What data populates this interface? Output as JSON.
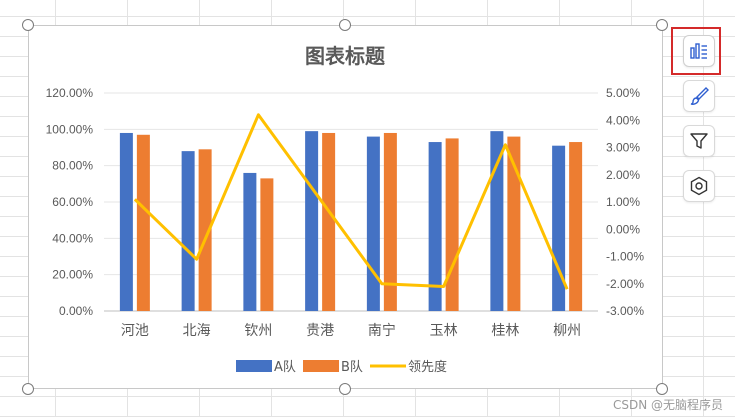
{
  "watermark": "CSDN @无脑程序员",
  "toolbar": {
    "buttons": [
      {
        "icon": "chart-elements-icon",
        "active": true
      },
      {
        "icon": "paintbrush-icon",
        "active": false
      },
      {
        "icon": "filter-icon",
        "active": false
      },
      {
        "icon": "settings-hexagon-icon",
        "active": false
      }
    ]
  },
  "chart_data": {
    "type": "bar",
    "title": "图表标题",
    "categories": [
      "河池",
      "北海",
      "钦州",
      "贵港",
      "南宁",
      "玉林",
      "桂林",
      "柳州"
    ],
    "series": [
      {
        "name": "A队",
        "type": "bar",
        "axis": "left",
        "color": "#4472C4",
        "values": [
          0.98,
          0.88,
          0.76,
          0.99,
          0.96,
          0.93,
          0.99,
          0.91
        ]
      },
      {
        "name": "B队",
        "type": "bar",
        "axis": "left",
        "color": "#ED7D31",
        "values": [
          0.97,
          0.89,
          0.73,
          0.98,
          0.98,
          0.95,
          0.96,
          0.93
        ]
      },
      {
        "name": "领先度",
        "type": "line",
        "axis": "right",
        "color": "#FFC000",
        "values": [
          0.011,
          -0.011,
          0.042,
          0.011,
          -0.02,
          -0.021,
          0.031,
          -0.022
        ]
      }
    ],
    "y_left": {
      "min": 0,
      "max": 1.2,
      "ticks": [
        "0.00%",
        "20.00%",
        "40.00%",
        "60.00%",
        "80.00%",
        "100.00%",
        "120.00%"
      ]
    },
    "y_right": {
      "min": -0.03,
      "max": 0.05,
      "ticks": [
        "-3.00%",
        "-2.00%",
        "-1.00%",
        "0.00%",
        "1.00%",
        "2.00%",
        "3.00%",
        "4.00%",
        "5.00%"
      ]
    },
    "grid": true,
    "legend_position": "bottom"
  }
}
